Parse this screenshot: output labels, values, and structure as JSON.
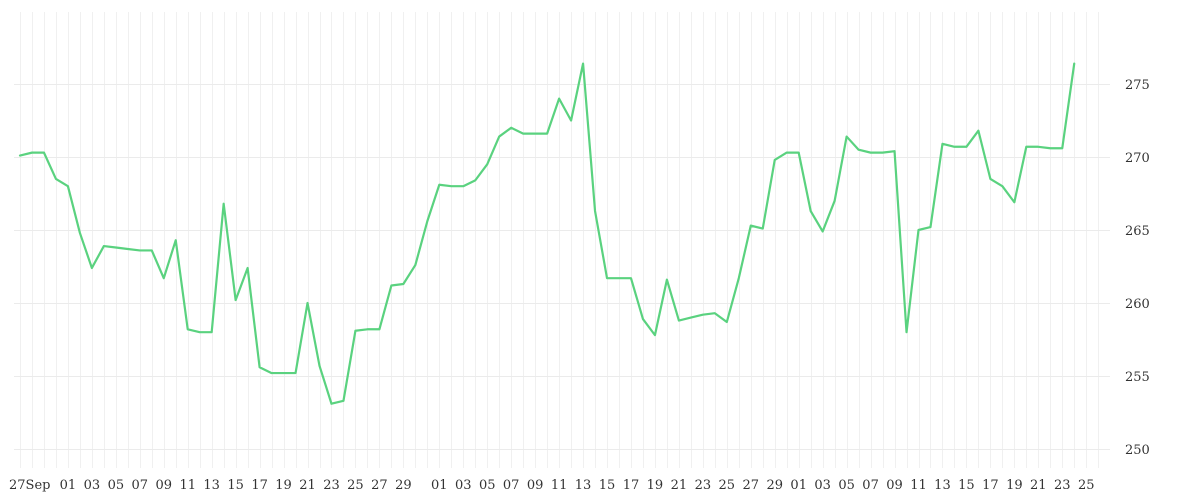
{
  "chart_data": {
    "type": "line",
    "title": "",
    "xlabel": "",
    "ylabel": "",
    "y_axis_side": "right",
    "ylim": [
      248.5,
      279
    ],
    "y_ticks": [
      250,
      255,
      260,
      265,
      270,
      275
    ],
    "grid": true,
    "x_tick_labels": [
      {
        "i": 0,
        "label": "27Sep"
      },
      {
        "i": 4,
        "label": "01"
      },
      {
        "i": 6,
        "label": "03"
      },
      {
        "i": 8,
        "label": "05"
      },
      {
        "i": 10,
        "label": "07"
      },
      {
        "i": 12,
        "label": "09"
      },
      {
        "i": 14,
        "label": "11"
      },
      {
        "i": 16,
        "label": "13"
      },
      {
        "i": 18,
        "label": "15"
      },
      {
        "i": 20,
        "label": "17"
      },
      {
        "i": 22,
        "label": "19"
      },
      {
        "i": 24,
        "label": "21"
      },
      {
        "i": 26,
        "label": "23"
      },
      {
        "i": 28,
        "label": "25"
      },
      {
        "i": 30,
        "label": "27"
      },
      {
        "i": 32,
        "label": "29"
      },
      {
        "i": 35,
        "label": "01"
      },
      {
        "i": 37,
        "label": "03"
      },
      {
        "i": 39,
        "label": "05"
      },
      {
        "i": 41,
        "label": "07"
      },
      {
        "i": 43,
        "label": "09"
      },
      {
        "i": 45,
        "label": "11"
      },
      {
        "i": 47,
        "label": "13"
      },
      {
        "i": 49,
        "label": "15"
      },
      {
        "i": 51,
        "label": "17"
      },
      {
        "i": 53,
        "label": "19"
      },
      {
        "i": 55,
        "label": "21"
      },
      {
        "i": 57,
        "label": "23"
      },
      {
        "i": 59,
        "label": "25"
      },
      {
        "i": 61,
        "label": "27"
      },
      {
        "i": 63,
        "label": "29"
      },
      {
        "i": 65,
        "label": "01"
      },
      {
        "i": 67,
        "label": "03"
      },
      {
        "i": 69,
        "label": "05"
      },
      {
        "i": 71,
        "label": "07"
      },
      {
        "i": 73,
        "label": "09"
      },
      {
        "i": 75,
        "label": "11"
      },
      {
        "i": 77,
        "label": "13"
      },
      {
        "i": 79,
        "label": "15"
      },
      {
        "i": 81,
        "label": "17"
      },
      {
        "i": 83,
        "label": "19"
      },
      {
        "i": 85,
        "label": "21"
      },
      {
        "i": 87,
        "label": "23"
      },
      {
        "i": 89,
        "label": "25"
      }
    ],
    "x_total_slots": 91,
    "series": [
      {
        "color": "#5ad27f",
        "points": [
          {
            "i": 0,
            "y": 270.1
          },
          {
            "i": 1,
            "y": 270.3
          },
          {
            "i": 2,
            "y": 270.3
          },
          {
            "i": 3,
            "y": 268.5
          },
          {
            "i": 4,
            "y": 268.0
          },
          {
            "i": 5,
            "y": 264.8
          },
          {
            "i": 6,
            "y": 262.4
          },
          {
            "i": 7,
            "y": 263.9
          },
          {
            "i": 8,
            "y": 263.8
          },
          {
            "i": 9,
            "y": 263.7
          },
          {
            "i": 10,
            "y": 263.6
          },
          {
            "i": 11,
            "y": 263.6
          },
          {
            "i": 12,
            "y": 261.7
          },
          {
            "i": 13,
            "y": 264.3
          },
          {
            "i": 14,
            "y": 258.2
          },
          {
            "i": 15,
            "y": 258.0
          },
          {
            "i": 16,
            "y": 258.0
          },
          {
            "i": 17,
            "y": 266.8
          },
          {
            "i": 18,
            "y": 260.2
          },
          {
            "i": 19,
            "y": 262.4
          },
          {
            "i": 20,
            "y": 255.6
          },
          {
            "i": 21,
            "y": 255.2
          },
          {
            "i": 22,
            "y": 255.2
          },
          {
            "i": 23,
            "y": 255.2
          },
          {
            "i": 24,
            "y": 260.0
          },
          {
            "i": 25,
            "y": 255.7
          },
          {
            "i": 26,
            "y": 253.1
          },
          {
            "i": 27,
            "y": 253.3
          },
          {
            "i": 28,
            "y": 258.1
          },
          {
            "i": 29,
            "y": 258.2
          },
          {
            "i": 30,
            "y": 258.2
          },
          {
            "i": 31,
            "y": 261.2
          },
          {
            "i": 32,
            "y": 261.3
          },
          {
            "i": 33,
            "y": 262.6
          },
          {
            "i": 34,
            "y": 265.6
          },
          {
            "i": 35,
            "y": 268.1
          },
          {
            "i": 36,
            "y": 268.0
          },
          {
            "i": 37,
            "y": 268.0
          },
          {
            "i": 38,
            "y": 268.4
          },
          {
            "i": 39,
            "y": 269.5
          },
          {
            "i": 40,
            "y": 271.4
          },
          {
            "i": 41,
            "y": 272.0
          },
          {
            "i": 42,
            "y": 271.6
          },
          {
            "i": 43,
            "y": 271.6
          },
          {
            "i": 44,
            "y": 271.6
          },
          {
            "i": 45,
            "y": 274.0
          },
          {
            "i": 46,
            "y": 272.5
          },
          {
            "i": 47,
            "y": 276.4
          },
          {
            "i": 48,
            "y": 266.3
          },
          {
            "i": 49,
            "y": 261.7
          },
          {
            "i": 50,
            "y": 261.7
          },
          {
            "i": 51,
            "y": 261.7
          },
          {
            "i": 52,
            "y": 258.9
          },
          {
            "i": 53,
            "y": 257.8
          },
          {
            "i": 54,
            "y": 261.6
          },
          {
            "i": 55,
            "y": 258.8
          },
          {
            "i": 56,
            "y": 259.0
          },
          {
            "i": 57,
            "y": 259.2
          },
          {
            "i": 58,
            "y": 259.3
          },
          {
            "i": 59,
            "y": 258.7
          },
          {
            "i": 60,
            "y": 261.7
          },
          {
            "i": 61,
            "y": 265.3
          },
          {
            "i": 62,
            "y": 265.1
          },
          {
            "i": 63,
            "y": 269.8
          },
          {
            "i": 64,
            "y": 270.3
          },
          {
            "i": 65,
            "y": 270.3
          },
          {
            "i": 66,
            "y": 266.3
          },
          {
            "i": 67,
            "y": 264.9
          },
          {
            "i": 68,
            "y": 267.0
          },
          {
            "i": 69,
            "y": 271.4
          },
          {
            "i": 70,
            "y": 270.5
          },
          {
            "i": 71,
            "y": 270.3
          },
          {
            "i": 72,
            "y": 270.3
          },
          {
            "i": 73,
            "y": 270.4
          },
          {
            "i": 74,
            "y": 258.0
          },
          {
            "i": 75,
            "y": 265.0
          },
          {
            "i": 76,
            "y": 265.2
          },
          {
            "i": 77,
            "y": 270.9
          },
          {
            "i": 78,
            "y": 270.7
          },
          {
            "i": 79,
            "y": 270.7
          },
          {
            "i": 80,
            "y": 271.8
          },
          {
            "i": 81,
            "y": 268.5
          },
          {
            "i": 82,
            "y": 268.0
          },
          {
            "i": 83,
            "y": 266.9
          },
          {
            "i": 84,
            "y": 270.7
          },
          {
            "i": 85,
            "y": 270.7
          },
          {
            "i": 86,
            "y": 270.6
          },
          {
            "i": 87,
            "y": 270.6
          },
          {
            "i": 88,
            "y": 276.4
          }
        ]
      }
    ]
  }
}
